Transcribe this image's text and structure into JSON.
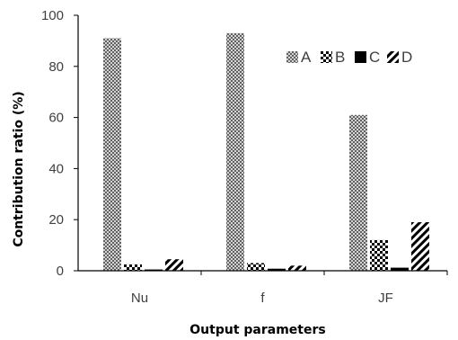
{
  "chart_data": {
    "type": "bar",
    "categories": [
      "Nu",
      "f",
      "JF"
    ],
    "series": [
      {
        "name": "A",
        "values": [
          91,
          93,
          61
        ]
      },
      {
        "name": "B",
        "values": [
          2.5,
          3,
          12
        ]
      },
      {
        "name": "C",
        "values": [
          0.5,
          0.8,
          1.2
        ]
      },
      {
        "name": "D",
        "values": [
          4.5,
          2,
          19
        ]
      }
    ],
    "xlabel": "Output parameters",
    "ylabel": "Contribution ratio (%)",
    "ylim": [
      0,
      100
    ],
    "yticks": [
      0,
      20,
      40,
      60,
      80,
      100
    ],
    "legend_position": "top-right",
    "grid": false,
    "series_patterns": [
      "crosshatch",
      "checker",
      "solid",
      "diagonal-stripes"
    ]
  }
}
